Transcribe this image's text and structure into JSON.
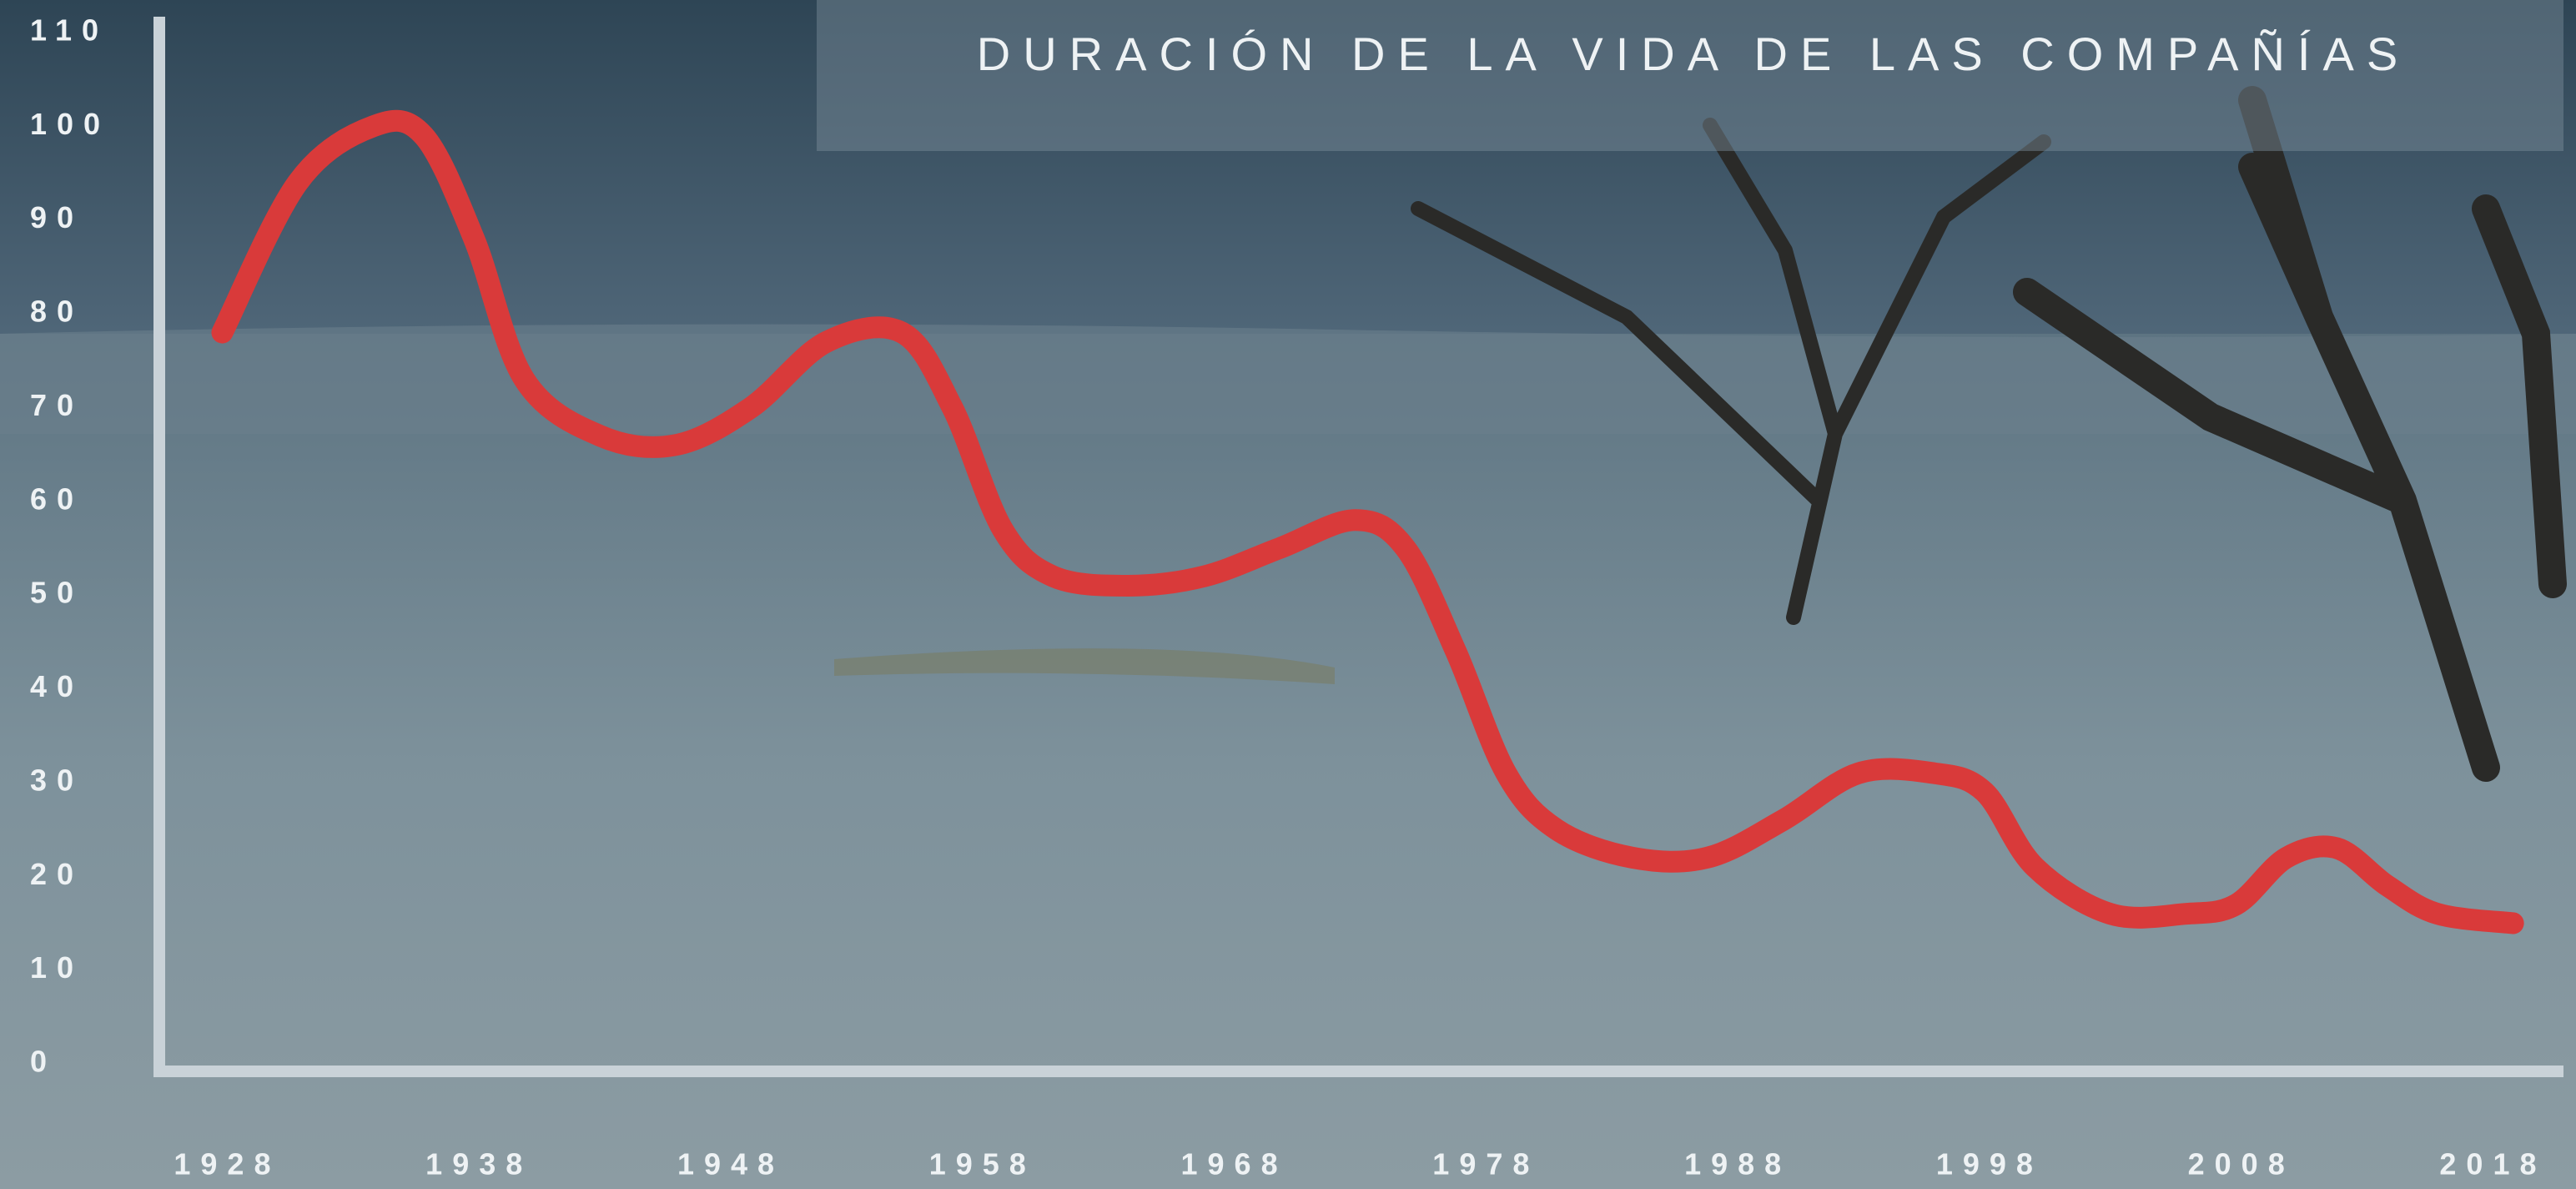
{
  "chart_data": {
    "type": "line",
    "title": "DURACIÓN DE LA VIDA DE LAS COMPAÑÍAS",
    "x": [
      1928,
      1931,
      1934,
      1936,
      1938,
      1940,
      1943,
      1946,
      1949,
      1952,
      1955,
      1957,
      1959,
      1961,
      1964,
      1967,
      1970,
      1973,
      1975,
      1977,
      1979,
      1981,
      1984,
      1987,
      1990,
      1993,
      1996,
      1998,
      2000,
      2003,
      2006,
      2008,
      2010,
      2012,
      2014,
      2016,
      2019
    ],
    "values": [
      78,
      94,
      100,
      99,
      88,
      73,
      67,
      66,
      70,
      77,
      78,
      70,
      57,
      52,
      51,
      52,
      55,
      58,
      55,
      44,
      31,
      25,
      22,
      22,
      26,
      31,
      31,
      29,
      21,
      16,
      16,
      17,
      22,
      23,
      19,
      16,
      15
    ],
    "color": "#d93a3a",
    "xlim": [
      1925.5,
      2021
    ],
    "xticks": [
      1928,
      1938,
      1948,
      1958,
      1968,
      1978,
      1988,
      1998,
      2008,
      2018
    ],
    "ylim": [
      0,
      110
    ],
    "yticks": [
      0,
      10,
      20,
      30,
      40,
      50,
      60,
      70,
      80,
      90,
      100,
      110
    ]
  }
}
